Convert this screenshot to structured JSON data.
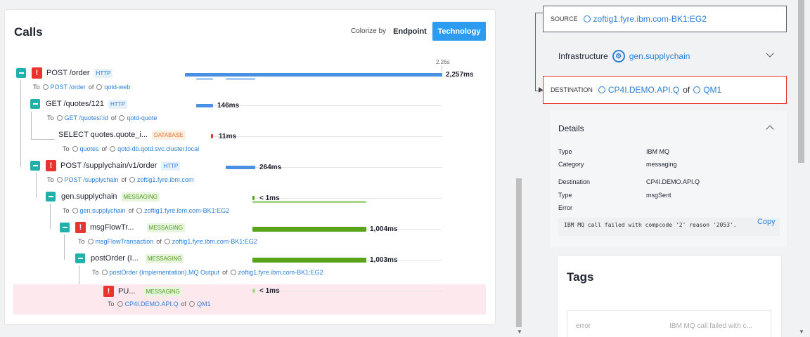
{
  "calls": {
    "title": "Calls",
    "colorize_label": "Colorize by",
    "endpoint_label": "Endpoint",
    "technology_label": "Technology",
    "axis_label": "2.26s",
    "to": "To",
    "of": "of",
    "rows": [
      {
        "name": "POST /order",
        "badge": "HTTP",
        "endpoint": "POST /order",
        "service": "qotd-web",
        "duration": "2,257ms",
        "error": "!"
      },
      {
        "name": "GET /quotes/121",
        "badge": "HTTP",
        "endpoint": "GET /quotes/:id",
        "service": "qotd-quote",
        "duration": "146ms"
      },
      {
        "name": "SELECT quotes.quote_i...",
        "badge": "DATABASE",
        "endpoint": "quotes",
        "service": "qotd-db.qotd.svc.cluster.local",
        "duration": "11ms"
      },
      {
        "name": "POST /supplychain/v1/order",
        "badge": "HTTP",
        "endpoint": "POST /supplychain",
        "service": "zoftig1.fyre.ibm.com",
        "duration": "264ms",
        "error": "!"
      },
      {
        "name": "gen.supplychain",
        "badge": "MESSAGING",
        "endpoint": "gen.supplychain",
        "service": "zoftig1.fyre.ibm.com-BK1:EG2",
        "duration": "< 1ms"
      },
      {
        "name": "msgFlowTr...",
        "badge": "MESSAGING",
        "endpoint": "msgFlowTransaction",
        "service": "zoftig1.fyre.ibm.com-BK1:EG2",
        "duration": "1,004ms",
        "error": "!"
      },
      {
        "name": "postOrder (I...",
        "badge": "MESSAGING",
        "endpoint": "postOrder (Implementation).MQ Output",
        "service": "zoftig1.fyre.ibm.com-BK1:EG2",
        "duration": "1,003ms"
      },
      {
        "name": "PU...",
        "badge": "MESSAGING",
        "endpoint": "CP4I.DEMO.API.Q",
        "service": "QM1",
        "duration": "< 1ms",
        "error": "!"
      }
    ]
  },
  "detail": {
    "source_label": "SOURCE",
    "source_value": "zoftig1.fyre.ibm.com-BK1:EG2",
    "infrastructure_label": "Infrastructure",
    "infrastructure_value": "gen.supplychain",
    "destination_label": "DESTINATION",
    "destination_value": "CP4I.DEMO.API.Q",
    "destination_of": "of",
    "destination_qm": "QM1",
    "details_title": "Details",
    "details": [
      {
        "key": "Type",
        "value": "IBM MQ"
      },
      {
        "key": "Category",
        "value": "messaging"
      },
      {
        "key": "Destination",
        "value": "CP4I.DEMO.API.Q"
      },
      {
        "key": "Type",
        "value": "msgSent"
      },
      {
        "key": "Error",
        "value": ""
      }
    ],
    "error_message": "IBM MQ call failed with compcode '2' reason '2053'.",
    "copy_label": "Copy",
    "tags_title": "Tags",
    "tag_key": "error",
    "tag_value": "IBM MQ call failed with c..."
  },
  "colors": {
    "accent": "#2d9cf0",
    "error": "#e8332e",
    "teal": "#20b2aa",
    "messaging": "#5aa31b",
    "http": "#4a90e2"
  }
}
